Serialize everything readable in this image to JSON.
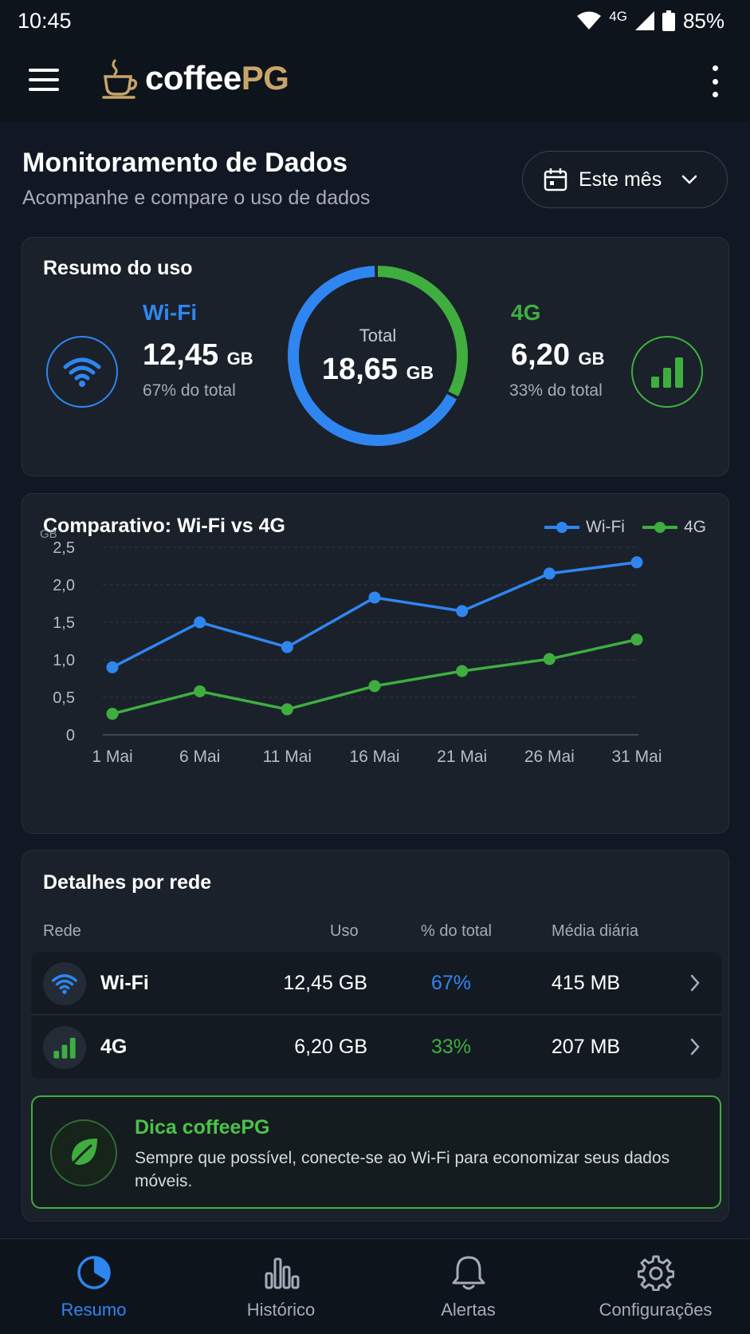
{
  "status_bar": {
    "time": "10:45",
    "network": "4G",
    "battery": "85%"
  },
  "app": {
    "logo_part1": "coffee",
    "logo_part2": "PG"
  },
  "header": {
    "title": "Monitoramento de Dados",
    "subtitle": "Acompanhe e compare o uso de dados",
    "period": "Este mês"
  },
  "summary": {
    "title": "Resumo do uso",
    "wifi": {
      "label": "Wi-Fi",
      "value": "12,45",
      "unit": "GB",
      "pct": "67% do total",
      "share": 0.67
    },
    "total": {
      "label": "Total",
      "value": "18,65",
      "unit": "GB"
    },
    "g4": {
      "label": "4G",
      "value": "6,20",
      "unit": "GB",
      "pct": "33% do total",
      "share": 0.33
    }
  },
  "chart": {
    "title": "Comparativo: Wi-Fi vs 4G",
    "legend": [
      "Wi-Fi",
      "4G"
    ]
  },
  "chart_data": {
    "type": "line",
    "categories": [
      "1 Mai",
      "6 Mai",
      "11 Mai",
      "16 Mai",
      "21 Mai",
      "26 Mai",
      "31 Mai"
    ],
    "series": [
      {
        "name": "Wi-Fi",
        "values": [
          0.9,
          1.5,
          1.17,
          1.83,
          1.65,
          2.15,
          2.3
        ]
      },
      {
        "name": "4G",
        "values": [
          0.28,
          0.58,
          0.34,
          0.65,
          0.85,
          1.01,
          1.27
        ]
      }
    ],
    "ylabel": "GB",
    "yticks": [
      "0",
      "0,5",
      "1,0",
      "1,5",
      "2,0",
      "2,5"
    ],
    "ylim": [
      0,
      2.5
    ],
    "grid": true,
    "legend_position": "top-right"
  },
  "details": {
    "title": "Detalhes por rede",
    "headers": {
      "rede": "Rede",
      "uso": "Uso",
      "pct": "% do total",
      "media": "Média diária"
    },
    "rows": [
      {
        "name": "Wi-Fi",
        "uso": "12,45 GB",
        "pct": "67%",
        "media": "415 MB"
      },
      {
        "name": "4G",
        "uso": "6,20 GB",
        "pct": "33%",
        "media": "207 MB"
      }
    ],
    "tip": {
      "title": "Dica coffeePG",
      "text": "Sempre que possível, conecte-se ao Wi-Fi para economizar seus dados móveis."
    }
  },
  "nav": [
    {
      "label": "Resumo",
      "icon": "pie-chart-icon"
    },
    {
      "label": "Histórico",
      "icon": "bar-chart-icon"
    },
    {
      "label": "Alertas",
      "icon": "bell-icon"
    },
    {
      "label": "Configurações",
      "icon": "gear-icon"
    }
  ],
  "colors": {
    "wifi": "#2f86f0",
    "g4": "#3fae3f",
    "accent": "#c9a46a",
    "background": "#111823"
  }
}
